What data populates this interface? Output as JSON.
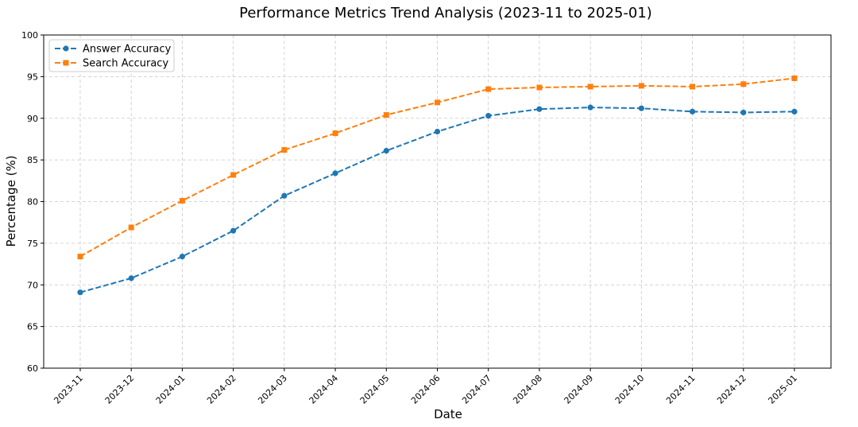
{
  "chart_data": {
    "type": "line",
    "title": "Performance Metrics Trend Analysis (2023-11 to 2025-01)",
    "xlabel": "Date",
    "ylabel": "Percentage (%)",
    "ylim": [
      60,
      100
    ],
    "yticks": [
      60,
      65,
      70,
      75,
      80,
      85,
      90,
      95,
      100
    ],
    "grid": true,
    "legend_position": "top-left",
    "categories": [
      "2023-11",
      "2023-12",
      "2024-01",
      "2024-02",
      "2024-03",
      "2024-04",
      "2024-05",
      "2024-06",
      "2024-07",
      "2024-08",
      "2024-09",
      "2024-10",
      "2024-11",
      "2024-12",
      "2025-01"
    ],
    "series": [
      {
        "name": "Answer Accuracy",
        "color": "#1f77b4",
        "marker": "circle",
        "line_style": "dashed",
        "values": [
          69.1,
          70.8,
          73.4,
          76.5,
          80.7,
          83.4,
          86.1,
          88.4,
          90.3,
          91.1,
          91.3,
          91.2,
          90.8,
          90.7,
          90.8
        ]
      },
      {
        "name": "Search Accuracy",
        "color": "#ff7f0e",
        "marker": "square",
        "line_style": "dashed",
        "values": [
          73.4,
          76.9,
          80.1,
          83.2,
          86.2,
          88.2,
          90.4,
          91.9,
          93.5,
          93.7,
          93.8,
          93.9,
          93.8,
          94.1,
          94.8
        ]
      }
    ]
  }
}
